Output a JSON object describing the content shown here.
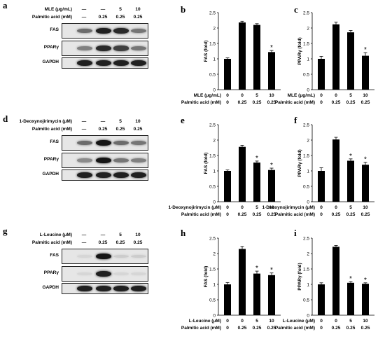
{
  "figure": {
    "panel_letters": [
      "a",
      "b",
      "c",
      "d",
      "e",
      "f",
      "g",
      "h",
      "i"
    ]
  },
  "blots": [
    {
      "letter": "a",
      "treatment_label": "MLE (μg/mL)",
      "treatment_values": [
        "—",
        "—",
        "5",
        "10"
      ],
      "pa_label": "Palmitic acid (mM)",
      "pa_values": [
        "—",
        "0.25",
        "0.25",
        "0.25"
      ],
      "rows": [
        {
          "label": "FAS",
          "intensity": [
            0.55,
            0.9,
            0.85,
            0.5
          ]
        },
        {
          "label": "PPARγ",
          "intensity": [
            0.45,
            0.85,
            0.75,
            0.5
          ]
        },
        {
          "label": "GAPDH",
          "intensity": [
            0.9,
            0.9,
            0.9,
            0.9
          ]
        }
      ]
    },
    {
      "letter": "d",
      "treatment_label": "1-Deoxynojirimycin (μM)",
      "treatment_values": [
        "—",
        "—",
        "5",
        "10"
      ],
      "pa_label": "Palmitic acid (mM)",
      "pa_values": [
        "—",
        "0.25",
        "0.25",
        "0.25"
      ],
      "rows": [
        {
          "label": "FAS",
          "intensity": [
            0.55,
            0.95,
            0.55,
            0.5
          ]
        },
        {
          "label": "PPARγ",
          "intensity": [
            0.4,
            0.95,
            0.5,
            0.45
          ]
        },
        {
          "label": "GAPDH",
          "intensity": [
            0.9,
            0.9,
            0.9,
            0.9
          ]
        }
      ]
    },
    {
      "letter": "g",
      "treatment_label": "L-Leucine (μM)",
      "treatment_values": [
        "—",
        "—",
        "5",
        "10"
      ],
      "pa_label": "Palmitic acid (mM)",
      "pa_values": [
        "—",
        "0.25",
        "0.25",
        "0.25"
      ],
      "rows": [
        {
          "label": "FAS",
          "intensity": [
            0.05,
            0.95,
            0.1,
            0.1
          ]
        },
        {
          "label": "PPARγ",
          "intensity": [
            0.05,
            0.9,
            0.05,
            0.05
          ]
        },
        {
          "label": "GAPDH",
          "intensity": [
            0.9,
            0.9,
            0.9,
            0.9
          ]
        }
      ]
    }
  ],
  "chart_data": [
    {
      "letter": "b",
      "type": "bar",
      "ylabel": "FAS (fold)",
      "ylim": [
        0,
        2.5
      ],
      "yticks": [
        "0",
        "0.5",
        "1",
        "1.5",
        "2",
        "2.5"
      ],
      "values": [
        1.0,
        2.18,
        2.1,
        1.22
      ],
      "errors": [
        0.03,
        0.04,
        0.04,
        0.05
      ],
      "significant": [
        false,
        false,
        false,
        true
      ],
      "row1_label": "MLE (μg/mL)",
      "row1_values": [
        "0",
        "0",
        "5",
        "10"
      ],
      "row2_label": "Palmitic acid (mM)",
      "row2_values": [
        "0",
        "0.25",
        "0.25",
        "0.25"
      ],
      "star": "*"
    },
    {
      "letter": "c",
      "type": "bar",
      "ylabel": "PPARγ (fold)",
      "ylim": [
        0,
        2.5
      ],
      "yticks": [
        "0",
        "0.5",
        "1",
        "1.5",
        "2",
        "2.5"
      ],
      "values": [
        1.0,
        2.12,
        1.86,
        1.1
      ],
      "errors": [
        0.08,
        0.07,
        0.06,
        0.1
      ],
      "significant": [
        false,
        false,
        false,
        true
      ],
      "row1_label": "MLE (μg/mL)",
      "row1_values": [
        "0",
        "0",
        "5",
        "10"
      ],
      "row2_label": "Palmitic acid (mM)",
      "row2_values": [
        "0",
        "0.25",
        "0.25",
        "0.25"
      ],
      "star": "*"
    },
    {
      "letter": "e",
      "type": "bar",
      "ylabel": "FAS (fold)",
      "ylim": [
        0,
        2.5
      ],
      "yticks": [
        "0",
        "0.5",
        "1",
        "1.5",
        "2",
        "2.5"
      ],
      "values": [
        1.0,
        1.78,
        1.27,
        1.03
      ],
      "errors": [
        0.03,
        0.05,
        0.05,
        0.06
      ],
      "significant": [
        false,
        false,
        true,
        true
      ],
      "row1_label": "1-Deoxynojirimycin (μM)",
      "row1_values": [
        "0",
        "0",
        "5",
        "10"
      ],
      "row2_label": "Palmitic acid (mM)",
      "row2_values": [
        "0",
        "0.25",
        "0.25",
        "0.25"
      ],
      "star": "*"
    },
    {
      "letter": "f",
      "type": "bar",
      "ylabel": "PPARγ (fold)",
      "ylim": [
        0,
        2.5
      ],
      "yticks": [
        "0",
        "0.5",
        "1",
        "1.5",
        "2",
        "2.5"
      ],
      "values": [
        1.0,
        2.02,
        1.33,
        1.2
      ],
      "errors": [
        0.1,
        0.07,
        0.06,
        0.08
      ],
      "significant": [
        false,
        false,
        true,
        true
      ],
      "row1_label": "1-Deoxynojirimycin (μM)",
      "row1_values": [
        "0",
        "0",
        "5",
        "10"
      ],
      "row2_label": "Palmitic acid (mM)",
      "row2_values": [
        "0",
        "0.25",
        "0.25",
        "0.25"
      ],
      "star": "*"
    },
    {
      "letter": "h",
      "type": "bar",
      "ylabel": "FAS (fold)",
      "ylim": [
        0,
        2.5
      ],
      "yticks": [
        "0",
        "0.5",
        "1",
        "1.5",
        "2",
        "2.5"
      ],
      "values": [
        1.0,
        2.15,
        1.35,
        1.3
      ],
      "errors": [
        0.06,
        0.08,
        0.08,
        0.07
      ],
      "significant": [
        false,
        false,
        true,
        true
      ],
      "row1_label": "L-Leucine (μM)",
      "row1_values": [
        "0",
        "0",
        "5",
        "10"
      ],
      "row2_label": "Palmitic acid (mM)",
      "row2_values": [
        "0",
        "0.25",
        "0.25",
        "0.25"
      ],
      "star": "*"
    },
    {
      "letter": "i",
      "type": "bar",
      "ylabel": "PPARγ (fold)",
      "ylim": [
        0,
        2.5
      ],
      "yticks": [
        "0",
        "0.5",
        "1",
        "1.5",
        "2",
        "2.5"
      ],
      "values": [
        1.0,
        2.22,
        1.05,
        1.02
      ],
      "errors": [
        0.05,
        0.04,
        0.04,
        0.03
      ],
      "significant": [
        false,
        false,
        true,
        true
      ],
      "row1_label": "L-Leucine (μM)",
      "row1_values": [
        "0",
        "0",
        "5",
        "10"
      ],
      "row2_label": "Palmitic acid (mM)",
      "row2_values": [
        "0",
        "0.25",
        "0.25",
        "0.25"
      ],
      "star": "*"
    }
  ]
}
